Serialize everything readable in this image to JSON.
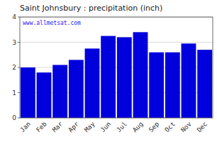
{
  "chart_data": {
    "type": "bar",
    "title": "Saint Johnsbury : precipitation (inch)",
    "annotation": "www.allmetsat.com",
    "categories": [
      "Jan",
      "Feb",
      "Mar",
      "Apr",
      "May",
      "Jun",
      "Jul",
      "Aug",
      "Sep",
      "Oct",
      "Nov",
      "Dec"
    ],
    "values": [
      2.0,
      1.8,
      2.1,
      2.3,
      2.75,
      3.25,
      3.2,
      3.4,
      2.6,
      2.6,
      2.95,
      2.7
    ],
    "color": "#0000DD",
    "ylim": [
      0,
      4
    ],
    "yticks": [
      0,
      1,
      2,
      3,
      4
    ],
    "grid": true
  }
}
